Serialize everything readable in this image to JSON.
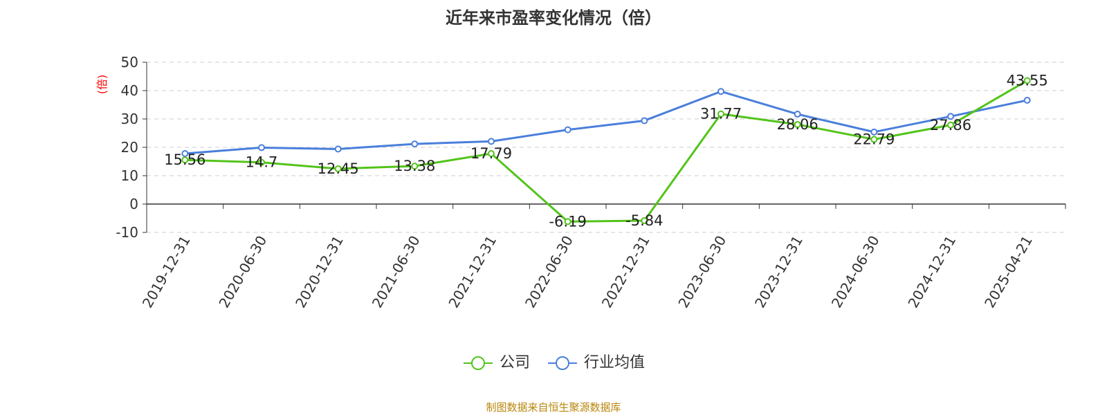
{
  "chart_data": {
    "type": "line",
    "title": "近年来市盈率变化情况（倍）",
    "ylabel": "(倍)",
    "xlabel": "",
    "categories": [
      "2019-12-31",
      "2020-06-30",
      "2020-12-31",
      "2021-06-30",
      "2021-12-31",
      "2022-06-30",
      "2022-12-31",
      "2023-06-30",
      "2023-12-31",
      "2024-06-30",
      "2024-12-31",
      "2025-04-21"
    ],
    "yticks": [
      -10,
      0,
      10,
      20,
      30,
      40,
      50
    ],
    "ylim": [
      -10,
      50
    ],
    "grid": true,
    "legend_position": "bottom-center",
    "series": [
      {
        "name": "公司",
        "color": "#52c41a",
        "values": [
          15.56,
          14.7,
          12.45,
          13.38,
          17.79,
          -6.19,
          -5.84,
          31.77,
          28.06,
          22.79,
          27.86,
          43.55
        ],
        "labels": [
          "15.56",
          "14.7",
          "12.45",
          "13.38",
          "17.79",
          "-6.19",
          "-5.84",
          "31.77",
          "28.06",
          "22.79",
          "27.86",
          "43.55"
        ]
      },
      {
        "name": "行业均值",
        "color": "#4a7fdb",
        "values": [
          17.8,
          19.9,
          19.4,
          21.2,
          22.1,
          26.2,
          29.4,
          39.7,
          31.7,
          25.4,
          30.9,
          36.6
        ]
      }
    ]
  },
  "source_note": "制图数据来自恒生聚源数据库",
  "colors": {
    "ylabel": "#ff0000",
    "grid": "#cccccc",
    "axis": "#333333",
    "source": "#b8860b"
  }
}
